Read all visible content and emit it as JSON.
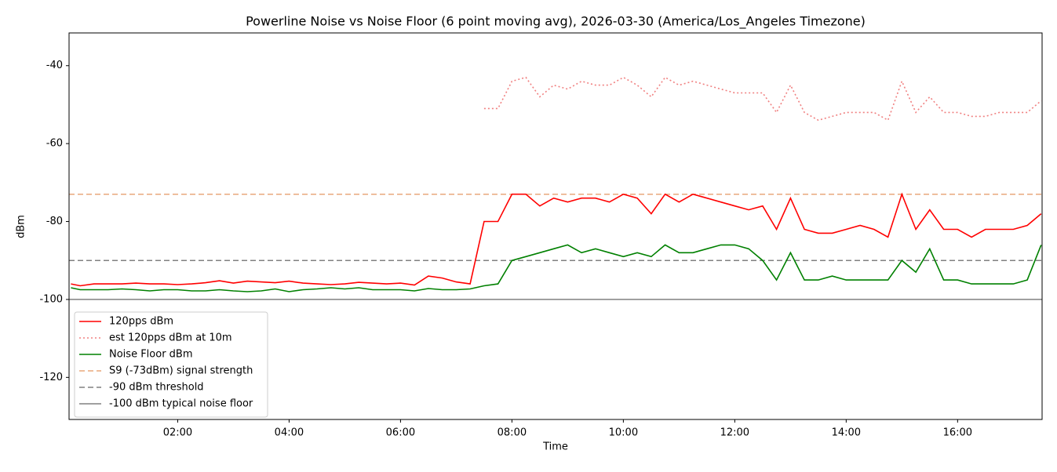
{
  "chart_data": {
    "type": "line",
    "title": "Powerline Noise vs Noise Floor (6 point moving avg), 2026-03-30 (America/Los_Angeles Timezone)",
    "x_label": "Time",
    "y_label": "dBm",
    "y_label_color": "#ff0000",
    "x": [
      "00:05",
      "00:15",
      "00:30",
      "00:45",
      "01:00",
      "01:15",
      "01:30",
      "01:45",
      "02:00",
      "02:15",
      "02:30",
      "02:45",
      "03:00",
      "03:15",
      "03:30",
      "03:45",
      "04:00",
      "04:15",
      "04:30",
      "04:45",
      "05:00",
      "05:15",
      "05:30",
      "05:45",
      "06:00",
      "06:15",
      "06:30",
      "06:45",
      "07:00",
      "07:15",
      "07:30",
      "07:45",
      "08:00",
      "08:15",
      "08:30",
      "08:45",
      "09:00",
      "09:15",
      "09:30",
      "09:45",
      "10:00",
      "10:15",
      "10:30",
      "10:45",
      "11:00",
      "11:15",
      "11:30",
      "11:45",
      "12:00",
      "12:15",
      "12:30",
      "12:45",
      "13:00",
      "13:15",
      "13:30",
      "13:45",
      "14:00",
      "14:15",
      "14:30",
      "14:45",
      "15:00",
      "15:15",
      "15:30",
      "15:45",
      "16:00",
      "16:15",
      "16:30",
      "16:45",
      "17:00",
      "17:15",
      "17:30"
    ],
    "series": [
      {
        "name": "120pps dBm",
        "color": "#ff0000",
        "style": "solid",
        "values": [
          -96,
          -96.5,
          -96,
          -96,
          -96,
          -95.8,
          -96,
          -96,
          -96.2,
          -96,
          -95.7,
          -95.2,
          -95.8,
          -95.3,
          -95.5,
          -95.7,
          -95.3,
          -95.8,
          -96,
          -96.2,
          -96,
          -95.6,
          -95.8,
          -96,
          -95.8,
          -96.3,
          -94,
          -94.5,
          -95.5,
          -96,
          -80,
          -80,
          -73,
          -73,
          -76,
          -74,
          -75,
          -74,
          -74,
          -75,
          -73,
          -74,
          -78,
          -73,
          -75,
          -73,
          -74,
          -75,
          -76,
          -77,
          -76,
          -82,
          -74,
          -82,
          -83,
          -83,
          -82,
          -81,
          -82,
          -84,
          -73,
          -82,
          -77,
          -82,
          -82,
          -84,
          -82,
          -82,
          -82,
          -81,
          -78
        ]
      },
      {
        "name": "est 120pps dBm at 10m",
        "color": "#f08080",
        "style": "dotted",
        "values": [
          null,
          null,
          null,
          null,
          null,
          null,
          null,
          null,
          null,
          null,
          null,
          null,
          null,
          null,
          null,
          null,
          null,
          null,
          null,
          null,
          null,
          null,
          null,
          null,
          null,
          null,
          null,
          null,
          null,
          null,
          -51,
          -51,
          -44,
          -43,
          -48,
          -45,
          -46,
          -44,
          -45,
          -45,
          -43,
          -45,
          -48,
          -43,
          -45,
          -44,
          -45,
          -46,
          -47,
          -47,
          -47,
          -52,
          -45,
          -52,
          -54,
          -53,
          -52,
          -52,
          -52,
          -54,
          -44,
          -52,
          -48,
          -52,
          -52,
          -53,
          -53,
          -52,
          -52,
          -52,
          -49
        ]
      },
      {
        "name": "Noise Floor dBm",
        "color": "#008000",
        "style": "solid",
        "values": [
          -97,
          -97.5,
          -97.5,
          -97.5,
          -97.3,
          -97.5,
          -97.8,
          -97.5,
          -97.5,
          -97.8,
          -97.8,
          -97.5,
          -97.8,
          -98,
          -97.8,
          -97.3,
          -98,
          -97.5,
          -97.3,
          -97,
          -97.3,
          -97,
          -97.5,
          -97.5,
          -97.5,
          -97.8,
          -97.2,
          -97.5,
          -97.5,
          -97.3,
          -96.5,
          -96,
          -90,
          -89,
          -88,
          -87,
          -86,
          -88,
          -87,
          -88,
          -89,
          -88,
          -89,
          -86,
          -88,
          -88,
          -87,
          -86,
          -86,
          -87,
          -90,
          -95,
          -88,
          -95,
          -95,
          -94,
          -95,
          -95,
          -95,
          -95,
          -90,
          -93,
          -87,
          -95,
          -95,
          -96,
          -96,
          -96,
          -96,
          -95,
          -86
        ]
      }
    ],
    "hlines": [
      {
        "name": "S9 (-73dBm) signal strength",
        "y": -73,
        "color": "#e8a87c",
        "style": "dashed"
      },
      {
        "name": "-90 dBm threshold",
        "y": -90,
        "color": "#808080",
        "style": "dashed"
      },
      {
        "name": "-100 dBm typical noise floor",
        "y": -100,
        "color": "#808080",
        "style": "solid"
      }
    ],
    "xlim": [
      "00:03",
      "17:31"
    ],
    "xticks": [
      "02:00",
      "04:00",
      "06:00",
      "08:00",
      "10:00",
      "12:00",
      "14:00",
      "16:00"
    ],
    "ylim": [
      -130.8,
      -31.6
    ],
    "yticks": [
      -120,
      -100,
      -80,
      -60,
      -40
    ],
    "ytick_color": "#ff0000",
    "grid": false,
    "legend": "lower left"
  }
}
